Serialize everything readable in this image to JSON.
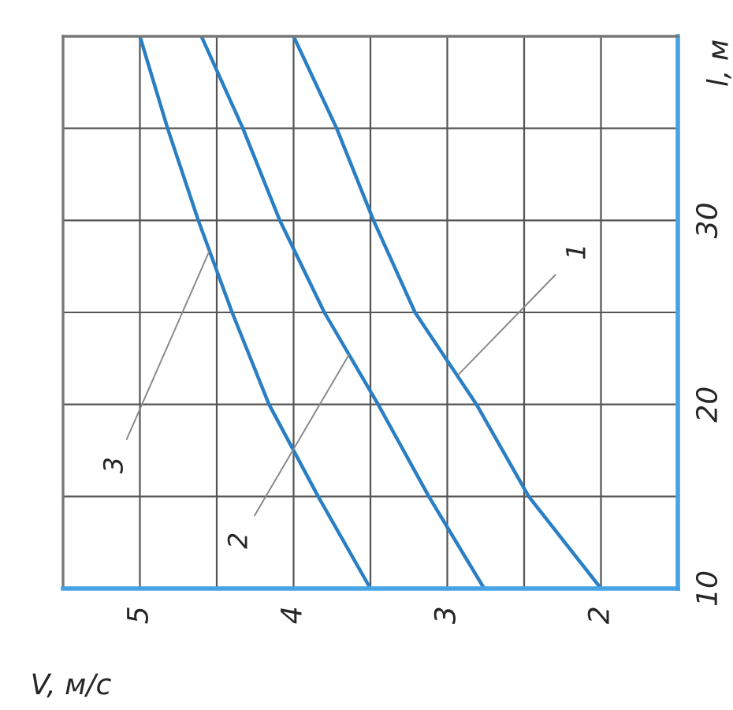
{
  "chart_data": {
    "type": "line",
    "xlabel": "V, м/с",
    "ylabel": "l, м",
    "series": [
      {
        "color": "#2a7fc4",
        "x": [
          2.0,
          2.47,
          2.81,
          3.21,
          3.48,
          3.72,
          4.0
        ],
        "values": [
          10,
          15,
          20,
          25,
          30,
          35,
          40
        ]
      },
      {
        "color": "#2a7fc4",
        "x": [
          2.76,
          3.12,
          3.45,
          3.8,
          4.09,
          4.33,
          4.6
        ],
        "values": [
          10,
          15,
          20,
          25,
          30,
          35,
          40
        ]
      },
      {
        "color": "#2a7fc4",
        "x": [
          3.5,
          3.84,
          4.16,
          4.4,
          4.62,
          4.82,
          5.0
        ],
        "values": [
          10,
          15,
          20,
          25,
          30,
          35,
          40
        ]
      }
    ],
    "xlim": [
      5.5,
      1.5
    ],
    "xticks": [
      2,
      {
        "value": 2.5,
        "label": null
      },
      3,
      {
        "value": 3.5,
        "label": null
      },
      4,
      {
        "value": 4.5,
        "label": null
      },
      5
    ],
    "ylim": [
      10,
      40
    ],
    "yticks": [
      10,
      {
        "value": 15,
        "label": null
      },
      20,
      {
        "value": 25,
        "label": null
      },
      30,
      {
        "value": 35,
        "label": null
      }
    ],
    "grid": true,
    "marker": "none",
    "line_style": "solid",
    "annotations": [
      {
        "text": "1",
        "x": 2.93,
        "y": 21.6
      },
      {
        "text": "2",
        "x": 3.64,
        "y": 22.7
      },
      {
        "text": "3",
        "x": 4.55,
        "y": 28.3
      }
    ]
  }
}
